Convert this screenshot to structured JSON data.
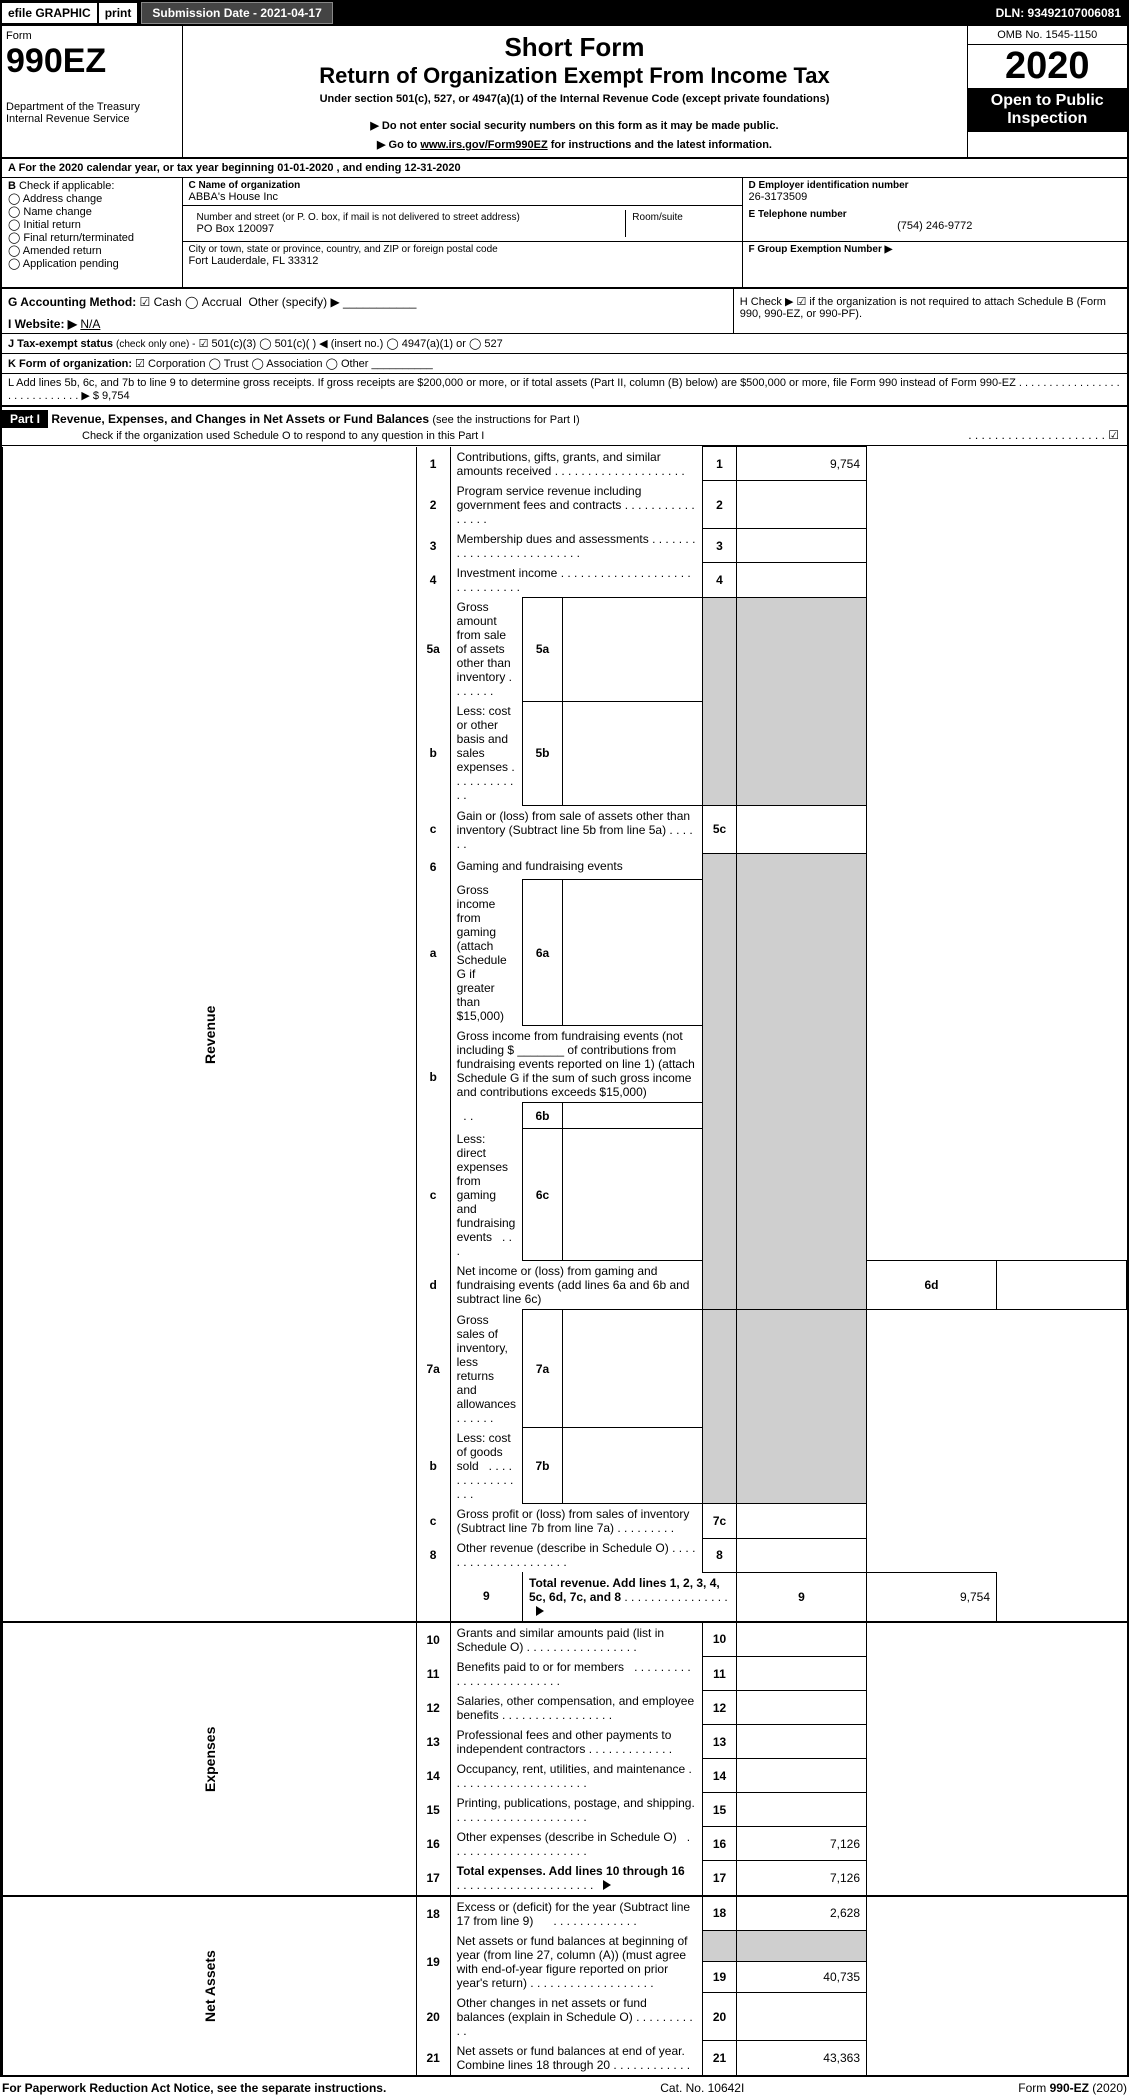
{
  "topbar": {
    "efile": "efile GRAPHIC",
    "print": "print",
    "subdate_lbl": "Submission Date - 2021-04-17",
    "dln": "DLN: 93492107006081"
  },
  "header": {
    "form": "Form",
    "formno": "990EZ",
    "title1": "Short Form",
    "title2": "Return of Organization Exempt From Income Tax",
    "subtitle": "Under section 501(c), 527, or 4947(a)(1) of the Internal Revenue Code (except private foundations)",
    "warn": "▶ Do not enter social security numbers on this form as it may be made public.",
    "goto_pre": "▶ Go to ",
    "goto_link": "www.irs.gov/Form990EZ",
    "goto_post": " for instructions and the latest information.",
    "dept": "Department of the Treasury",
    "irs": "Internal Revenue Service",
    "omb": "OMB No. 1545-1150",
    "year": "2020",
    "open": "Open to Public Inspection"
  },
  "A": {
    "text": "For the 2020 calendar year, or tax year beginning 01-01-2020 , and ending 12-31-2020"
  },
  "B": {
    "label": "Check if applicable:",
    "addr": "Address change",
    "name": "Name change",
    "init": "Initial return",
    "final": "Final return/terminated",
    "amend": "Amended return",
    "app": "Application pending"
  },
  "C": {
    "lbl": "C Name of organization",
    "name": "ABBA's House Inc",
    "street_lbl": "Number and street (or P. O. box, if mail is not delivered to street address)",
    "room_lbl": "Room/suite",
    "street": "PO Box 120097",
    "city_lbl": "City or town, state or province, country, and ZIP or foreign postal code",
    "city": "Fort Lauderdale, FL  33312"
  },
  "D": {
    "lbl": "D Employer identification number",
    "val": "26-3173509"
  },
  "E": {
    "lbl": "E Telephone number",
    "val": "(754) 246-9772"
  },
  "F": {
    "lbl": "F Group Exemption Number ▶"
  },
  "G": {
    "lbl": "G Accounting Method:",
    "cash": "Cash",
    "acc": "Accrual",
    "oth": "Other (specify) ▶"
  },
  "H": {
    "text": "H  Check ▶ ☑ if the organization is not required to attach Schedule B (Form 990, 990-EZ, or 990-PF)."
  },
  "I": {
    "lbl": "I Website: ▶",
    "val": "N/A"
  },
  "J": {
    "lbl": "J Tax-exempt status",
    "note": "(check only one) -",
    "o1": "501(c)(3)",
    "o2": "501(c)(  ) ◀ (insert no.)",
    "o3": "4947(a)(1) or",
    "o4": "527"
  },
  "K": {
    "lbl": "K Form of organization:",
    "corp": "Corporation",
    "trust": "Trust",
    "assoc": "Association",
    "oth": "Other"
  },
  "L": {
    "text": "L Add lines 5b, 6c, and 7b to line 9 to determine gross receipts. If gross receipts are $200,000 or more, or if total assets (Part II, column (B) below) are $500,000 or more, file Form 990 instead of Form 990-EZ",
    "amt": "▶ $ 9,754"
  },
  "part1": {
    "name": "Part I",
    "title": "Revenue, Expenses, and Changes in Net Assets or Fund Balances",
    "note": "(see the instructions for Part I)",
    "check": "Check if the organization used Schedule O to respond to any question in this Part I"
  },
  "rows": {
    "r1": {
      "n": "1",
      "d": "Contributions, gifts, grants, and similar amounts received",
      "v": "9,754"
    },
    "r2": {
      "n": "2",
      "d": "Program service revenue including government fees and contracts",
      "v": ""
    },
    "r3": {
      "n": "3",
      "d": "Membership dues and assessments",
      "v": ""
    },
    "r4": {
      "n": "4",
      "d": "Investment income",
      "v": ""
    },
    "r5a": {
      "n": "5a",
      "d": "Gross amount from sale of assets other than inventory",
      "m": "5a"
    },
    "r5b": {
      "n": "b",
      "d": "Less: cost or other basis and sales expenses",
      "m": "5b"
    },
    "r5c": {
      "n": "c",
      "d": "Gain or (loss) from sale of assets other than inventory (Subtract line 5b from line 5a)",
      "rn": "5c",
      "v": ""
    },
    "r6": {
      "n": "6",
      "d": "Gaming and fundraising events"
    },
    "r6a": {
      "n": "a",
      "d": "Gross income from gaming (attach Schedule G if greater than $15,000)",
      "m": "6a"
    },
    "r6b": {
      "n": "b",
      "d1": "Gross income from fundraising events (not including $",
      "d2": "of contributions from fundraising events reported on line 1) (attach Schedule G if the sum of such gross income and contributions exceeds $15,000)",
      "m": "6b"
    },
    "r6c": {
      "n": "c",
      "d": "Less: direct expenses from gaming and fundraising events",
      "m": "6c"
    },
    "r6d": {
      "n": "d",
      "d": "Net income or (loss) from gaming and fundraising events (add lines 6a and 6b and subtract line 6c)",
      "rn": "6d",
      "v": ""
    },
    "r7a": {
      "n": "7a",
      "d": "Gross sales of inventory, less returns and allowances",
      "m": "7a"
    },
    "r7b": {
      "n": "b",
      "d": "Less: cost of goods sold",
      "m": "7b"
    },
    "r7c": {
      "n": "c",
      "d": "Gross profit or (loss) from sales of inventory (Subtract line 7b from line 7a)",
      "rn": "7c",
      "v": ""
    },
    "r8": {
      "n": "8",
      "d": "Other revenue (describe in Schedule O)",
      "v": ""
    },
    "r9": {
      "n": "9",
      "d": "Total revenue. Add lines 1, 2, 3, 4, 5c, 6d, 7c, and 8",
      "v": "9,754",
      "arrow": true,
      "bold": true
    },
    "r10": {
      "n": "10",
      "d": "Grants and similar amounts paid (list in Schedule O)",
      "v": ""
    },
    "r11": {
      "n": "11",
      "d": "Benefits paid to or for members",
      "v": ""
    },
    "r12": {
      "n": "12",
      "d": "Salaries, other compensation, and employee benefits",
      "v": ""
    },
    "r13": {
      "n": "13",
      "d": "Professional fees and other payments to independent contractors",
      "v": ""
    },
    "r14": {
      "n": "14",
      "d": "Occupancy, rent, utilities, and maintenance",
      "v": ""
    },
    "r15": {
      "n": "15",
      "d": "Printing, publications, postage, and shipping.",
      "v": ""
    },
    "r16": {
      "n": "16",
      "d": "Other expenses (describe in Schedule O)",
      "v": "7,126"
    },
    "r17": {
      "n": "17",
      "d": "Total expenses. Add lines 10 through 16",
      "v": "7,126",
      "arrow": true,
      "bold": true
    },
    "r18": {
      "n": "18",
      "d": "Excess or (deficit) for the year (Subtract line 17 from line 9)",
      "v": "2,628"
    },
    "r19": {
      "n": "19",
      "d": "Net assets or fund balances at beginning of year (from line 27, column (A)) (must agree with end-of-year figure reported on prior year's return)",
      "v": "40,735"
    },
    "r20": {
      "n": "20",
      "d": "Other changes in net assets or fund balances (explain in Schedule O)",
      "v": ""
    },
    "r21": {
      "n": "21",
      "d": "Net assets or fund balances at end of year. Combine lines 18 through 20",
      "v": "43,363"
    }
  },
  "sections": {
    "rev": "Revenue",
    "exp": "Expenses",
    "net": "Net Assets"
  },
  "footer": {
    "pra": "For Paperwork Reduction Act Notice, see the separate instructions.",
    "cat": "Cat. No. 10642I",
    "form": "Form 990-EZ (2020)"
  }
}
